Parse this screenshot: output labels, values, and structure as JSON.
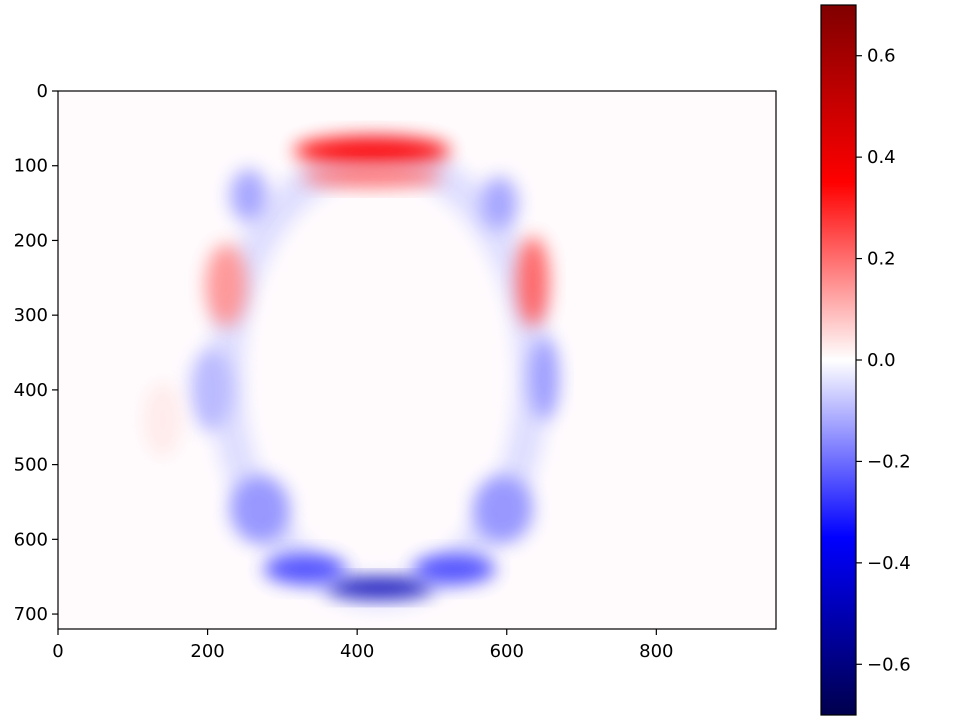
{
  "chart_data": {
    "type": "heatmap",
    "title": "",
    "xlabel": "",
    "ylabel": "",
    "image_extent": {
      "x": [
        0,
        960
      ],
      "y": [
        720,
        0
      ]
    },
    "x_ticks": [
      0,
      200,
      400,
      600,
      800
    ],
    "y_ticks": [
      0,
      100,
      200,
      300,
      400,
      500,
      600,
      700
    ],
    "x_tick_labels": [
      "0",
      "200",
      "400",
      "600",
      "800"
    ],
    "y_tick_labels": [
      "0",
      "100",
      "200",
      "300",
      "400",
      "500",
      "600",
      "700"
    ],
    "y_axis_inverted": true,
    "colormap": "seismic",
    "colormap_stops": [
      "#00004d",
      "#0000ff",
      "#ffffff",
      "#ff0000",
      "#800000"
    ],
    "vmin": -0.7,
    "vmax": 0.7,
    "colorbar": {
      "ticks": [
        -0.6,
        -0.4,
        -0.2,
        0.0,
        0.2,
        0.4,
        0.6
      ],
      "tick_labels": [
        "−0.6",
        "−0.4",
        "−0.2",
        "0.0",
        "0.2",
        "0.4",
        "0.6"
      ]
    },
    "field_features": [
      {
        "kind": "ellipse-ring",
        "center": [
          430,
          380
        ],
        "radius_x": 205,
        "radius_y": 290,
        "value": -0.05
      },
      {
        "kind": "blob",
        "center": [
          420,
          80
        ],
        "radius_x": 105,
        "radius_y": 20,
        "value": 0.35
      },
      {
        "kind": "blob",
        "center": [
          420,
          115
        ],
        "radius_x": 95,
        "radius_y": 14,
        "value": 0.2
      },
      {
        "kind": "blob",
        "center": [
          430,
          665
        ],
        "radius_x": 70,
        "radius_y": 13,
        "value": -0.5
      },
      {
        "kind": "blob",
        "center": [
          330,
          640
        ],
        "radius_x": 55,
        "radius_y": 20,
        "value": -0.25
      },
      {
        "kind": "blob",
        "center": [
          530,
          640
        ],
        "radius_x": 55,
        "radius_y": 20,
        "value": -0.25
      },
      {
        "kind": "blob",
        "center": [
          270,
          560
        ],
        "radius_x": 40,
        "radius_y": 45,
        "value": -0.15
      },
      {
        "kind": "blob",
        "center": [
          595,
          560
        ],
        "radius_x": 40,
        "radius_y": 45,
        "value": -0.15
      },
      {
        "kind": "blob",
        "center": [
          225,
          260
        ],
        "radius_x": 28,
        "radius_y": 55,
        "value": 0.15
      },
      {
        "kind": "blob",
        "center": [
          635,
          255
        ],
        "radius_x": 22,
        "radius_y": 60,
        "value": 0.22
      },
      {
        "kind": "blob",
        "center": [
          205,
          400
        ],
        "radius_x": 28,
        "radius_y": 55,
        "value": -0.1
      },
      {
        "kind": "blob",
        "center": [
          650,
          385
        ],
        "radius_x": 20,
        "radius_y": 55,
        "value": -0.14
      },
      {
        "kind": "blob",
        "center": [
          255,
          140
        ],
        "radius_x": 25,
        "radius_y": 35,
        "value": -0.13
      },
      {
        "kind": "blob",
        "center": [
          590,
          150
        ],
        "radius_x": 25,
        "radius_y": 35,
        "value": -0.13
      },
      {
        "kind": "blob",
        "center": [
          140,
          440
        ],
        "radius_x": 25,
        "radius_y": 50,
        "value": 0.03
      }
    ]
  }
}
